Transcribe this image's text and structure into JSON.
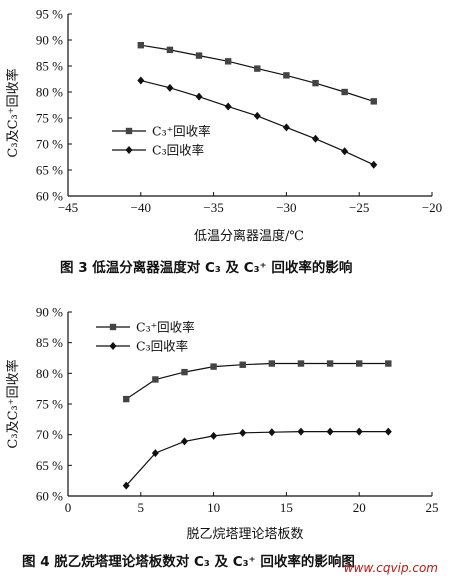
{
  "chart_data": [
    {
      "type": "line",
      "xlabel": "低温分离器温度/℃",
      "ylabel": "C₃及C₃⁺回收率",
      "xlim": [
        -45,
        -20
      ],
      "ylim": [
        60,
        95
      ],
      "x_ticks": [
        "−45",
        "−40",
        "−35",
        "−30",
        "−25",
        "−20"
      ],
      "y_ticks": [
        "60 %",
        "65 %",
        "70 %",
        "75 %",
        "80 %",
        "85 %",
        "90 %",
        "95 %"
      ],
      "legend_position": "left-middle",
      "series": [
        {
          "name": "C₃⁺回收率",
          "marker": "square",
          "x": [
            -40,
            -38,
            -36,
            -34,
            -32,
            -30,
            -28,
            -26,
            -24
          ],
          "y": [
            89.0,
            88.1,
            87.0,
            85.9,
            84.5,
            83.2,
            81.7,
            80.0,
            78.2
          ]
        },
        {
          "name": "C₃回收率",
          "marker": "diamond",
          "x": [
            -40,
            -38,
            -36,
            -34,
            -32,
            -30,
            -28,
            -26,
            -24
          ],
          "y": [
            82.2,
            80.8,
            79.1,
            77.2,
            75.4,
            73.2,
            71.0,
            68.6,
            66.0
          ]
        }
      ],
      "caption": "图 3   低温分离器温度对 C₃ 及 C₃⁺ 回收率的影响"
    },
    {
      "type": "line",
      "xlabel": "脱乙烷塔理论塔板数",
      "ylabel": "C₃及C₃⁺回收率",
      "xlim": [
        0,
        25
      ],
      "ylim": [
        60,
        90
      ],
      "x_ticks": [
        "0",
        "5",
        "10",
        "15",
        "20",
        "25"
      ],
      "y_ticks": [
        "60 %",
        "65 %",
        "70 %",
        "75 %",
        "80 %",
        "85 %",
        "90 %"
      ],
      "legend_position": "top-left",
      "series": [
        {
          "name": "C₃⁺回收率",
          "marker": "square",
          "x": [
            4,
            6,
            8,
            10,
            12,
            14,
            16,
            18,
            20,
            22
          ],
          "y": [
            75.8,
            79.0,
            80.2,
            81.1,
            81.4,
            81.6,
            81.6,
            81.6,
            81.6,
            81.6
          ]
        },
        {
          "name": "C₃回收率",
          "marker": "diamond",
          "x": [
            4,
            6,
            8,
            10,
            12,
            14,
            16,
            18,
            20,
            22
          ],
          "y": [
            61.7,
            67.0,
            68.9,
            69.8,
            70.3,
            70.4,
            70.5,
            70.5,
            70.5,
            70.5
          ]
        }
      ],
      "caption": "图 4   脱乙烷塔理论塔板数对 C₃ 及 C₃⁺ 回收率的影响图"
    }
  ],
  "watermark": "www.cqvip.com"
}
